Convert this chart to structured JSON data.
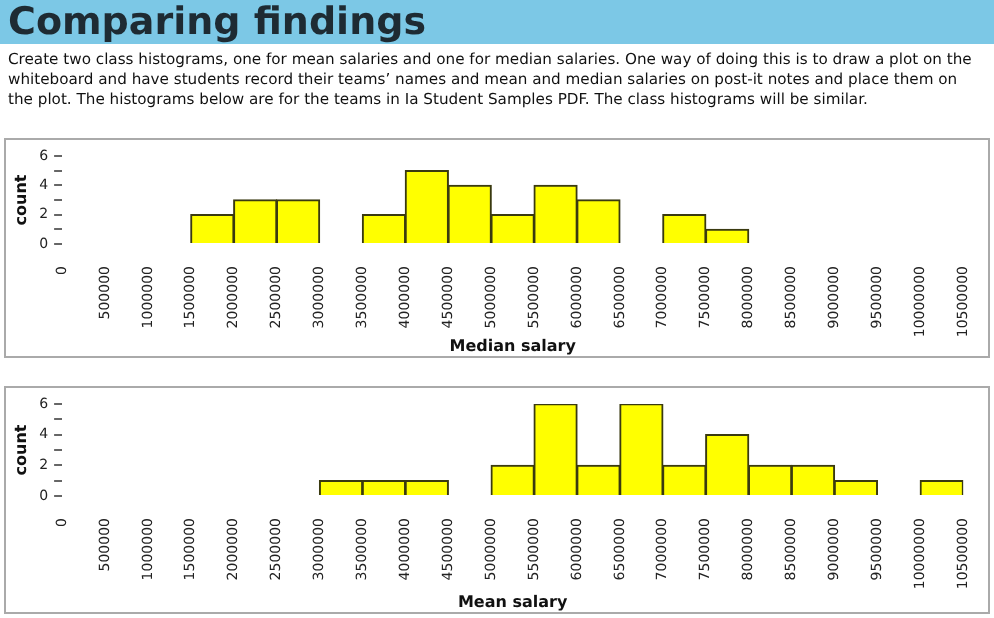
{
  "chart_data": [
    {
      "type": "histogram",
      "title": "Comparing findings",
      "subtitle": "Create two class histograms, one for mean salaries and one for median salaries. One way of doing this is to draw a plot on the whiteboard and have students record their teams’ names and mean and median salaries on post-it notes and place them on the plot. The histograms below are for the teams in Ia Student Samples PDF. The class histograms will be similar.",
      "xlabel": "Median salary",
      "ylabel": "count",
      "bins": [
        1500000,
        2000000,
        2500000,
        3000000,
        3500000,
        4000000,
        4500000,
        5000000,
        5500000,
        6000000,
        6500000,
        7000000,
        7500000,
        8000000
      ],
      "values": [
        2,
        3,
        3,
        0,
        2,
        5,
        4,
        2,
        4,
        3,
        0,
        2,
        1
      ],
      "color": "#ffff00",
      "xlim": [
        0,
        10500000
      ],
      "xticks": [
        0,
        500000,
        1000000,
        1500000,
        2000000,
        2500000,
        3000000,
        3500000,
        4000000,
        4500000,
        5000000,
        5500000,
        6000000,
        6500000,
        7000000,
        7500000,
        8000000,
        8500000,
        9000000,
        9500000,
        10000000,
        10500000
      ],
      "ylim": [
        0,
        6
      ],
      "yticks": [
        0,
        {
          "value": 1,
          "label": null
        },
        2,
        {
          "value": 3,
          "label": null
        },
        4,
        {
          "value": 5,
          "label": null
        },
        6
      ],
      "grid": false,
      "legend": false
    },
    {
      "type": "histogram",
      "xlabel": "Mean salary",
      "ylabel": "count",
      "bins": [
        3000000,
        3500000,
        4000000,
        4500000,
        5000000,
        5500000,
        6000000,
        6500000,
        7000000,
        7500000,
        8000000,
        8500000,
        9000000,
        9500000,
        10000000,
        10500000
      ],
      "values": [
        1,
        1,
        1,
        0,
        2,
        6,
        2,
        6,
        2,
        4,
        2,
        2,
        1,
        0,
        1
      ],
      "color": "#ffff00",
      "xlim": [
        0,
        10500000
      ],
      "xticks": [
        0,
        500000,
        1000000,
        1500000,
        2000000,
        2500000,
        3000000,
        3500000,
        4000000,
        4500000,
        5000000,
        5500000,
        6000000,
        6500000,
        7000000,
        7500000,
        8000000,
        8500000,
        9000000,
        9500000,
        10000000,
        10500000
      ],
      "ylim": [
        0,
        6
      ],
      "yticks": [
        0,
        {
          "value": 1,
          "label": null
        },
        2,
        {
          "value": 3,
          "label": null
        },
        4,
        {
          "value": 5,
          "label": null
        },
        6
      ],
      "grid": false,
      "legend": false
    }
  ]
}
